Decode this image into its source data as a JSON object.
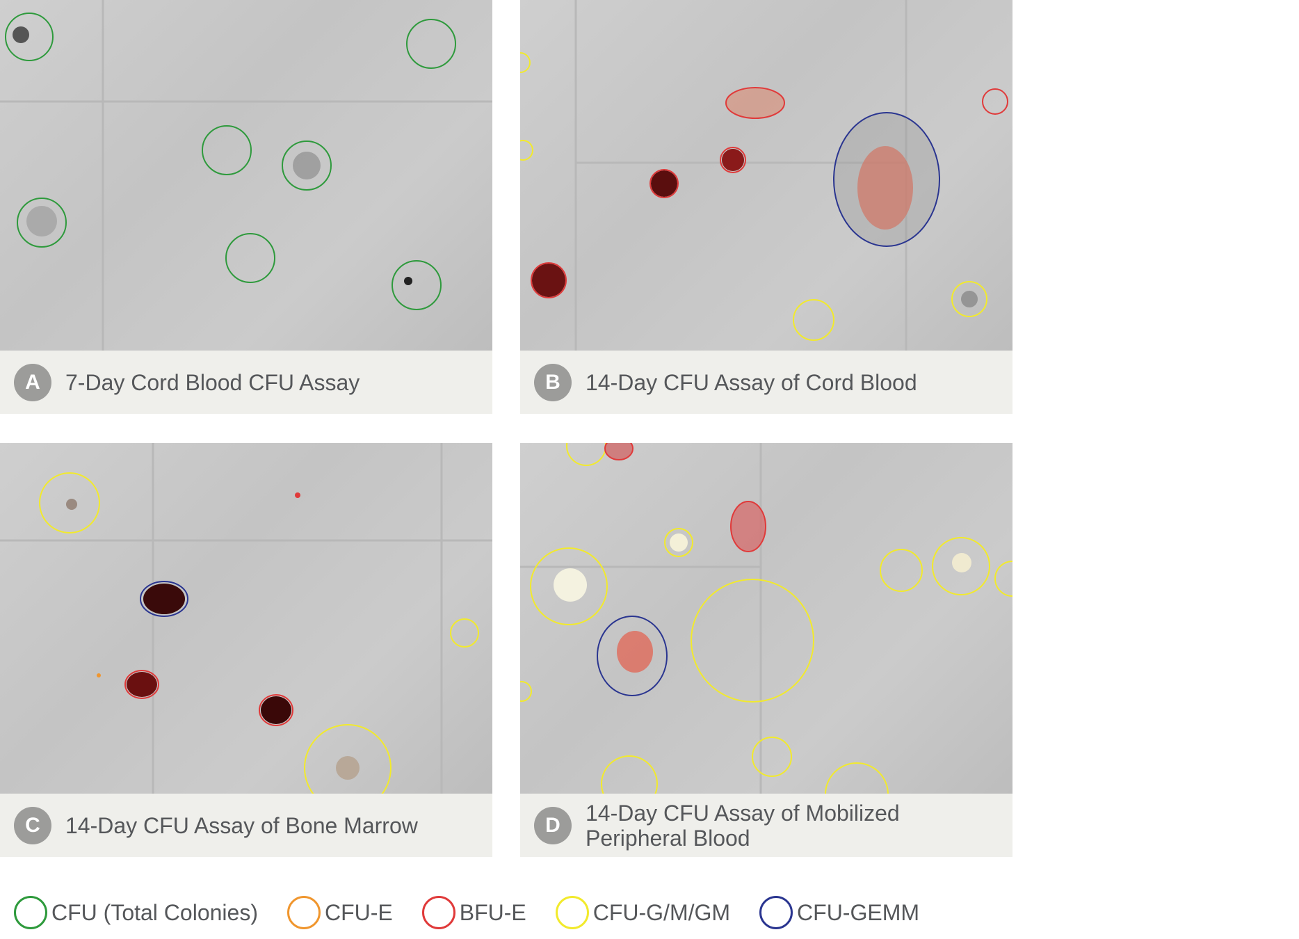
{
  "panels": [
    {
      "letter": "A",
      "caption": "7-Day Cord Blood CFU Assay"
    },
    {
      "letter": "B",
      "caption": "14-Day CFU Assay of Cord Blood"
    },
    {
      "letter": "C",
      "caption": "14-Day CFU Assay of Bone Marrow"
    },
    {
      "letter": "D",
      "caption": "14-Day CFU Assay of Mobilized\nPeripheral Blood"
    }
  ],
  "legend": [
    {
      "label": "CFU (Total Colonies)",
      "color": "#2e9a3c"
    },
    {
      "label": "CFU-E",
      "color": "#f0962e"
    },
    {
      "label": "BFU-E",
      "color": "#e03a3a"
    },
    {
      "label": "CFU-G/M/GM",
      "color": "#f2ea2c"
    },
    {
      "label": "CFU-GEMM",
      "color": "#2a3590"
    }
  ],
  "colors": {
    "caption_bg": "#efefeb",
    "badge_bg": "#9c9c9a",
    "text": "#55575a"
  }
}
